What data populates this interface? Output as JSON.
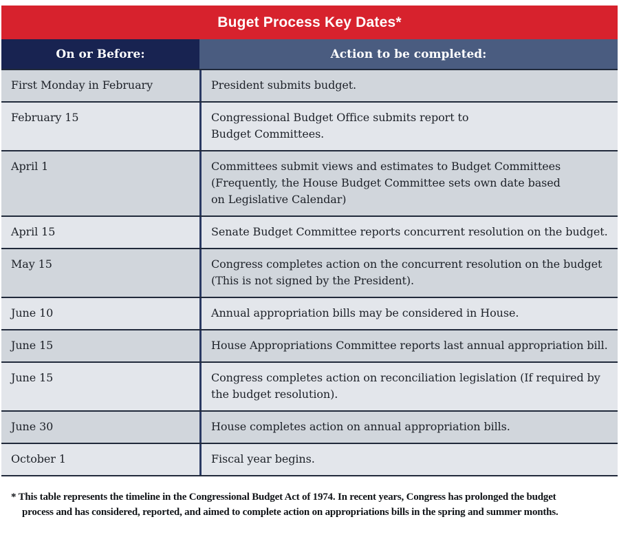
{
  "title": "Buget Process Key Dates*",
  "colors": {
    "title_bar": "#d7222d",
    "header_left_bg": "#182351",
    "header_right_bg": "#4a5c80",
    "row_dark": "#d1d6dc",
    "row_light": "#e3e6eb",
    "row_border": "#20293a",
    "column_divider": "#2b3a63",
    "body_text": "#1d2128",
    "header_text": "#ffffff"
  },
  "table": {
    "columns": [
      {
        "label": "On or Before:"
      },
      {
        "label": "Action to be completed:"
      }
    ],
    "rows": [
      {
        "date": "First Monday in February",
        "action": "President submits budget."
      },
      {
        "date": "February 15",
        "action": "Congressional Budget Office submits report to\nBudget Committees."
      },
      {
        "date": "April 1",
        "action": "Committees submit views and estimates to Budget Committees\n(Frequently, the House Budget Committee sets own date based\non Legislative Calendar)"
      },
      {
        "date": "April 15",
        "action": "Senate Budget Committee reports concurrent resolution on the budget."
      },
      {
        "date": "May 15",
        "action": "Congress completes action on the concurrent resolution on the budget\n(This is not signed by the President)."
      },
      {
        "date": "June 10",
        "action": "Annual appropriation bills may be considered in House."
      },
      {
        "date": "June 15",
        "action": "House Appropriations Committee reports last annual appropriation bill."
      },
      {
        "date": "June 15",
        "action": "Congress completes action on reconciliation legislation (If required by\nthe budget resolution)."
      },
      {
        "date": "June 30",
        "action": "House completes action on annual appropriation bills."
      },
      {
        "date": "October 1",
        "action": "Fiscal year begins."
      }
    ]
  },
  "footnote_text": "* This table represents the timeline in the Congressional Budget Act of 1974. In recent years, Congress has prolonged the budget\nprocess and has considered, reported, and aimed to complete action on appropriations bills in the spring and summer months."
}
